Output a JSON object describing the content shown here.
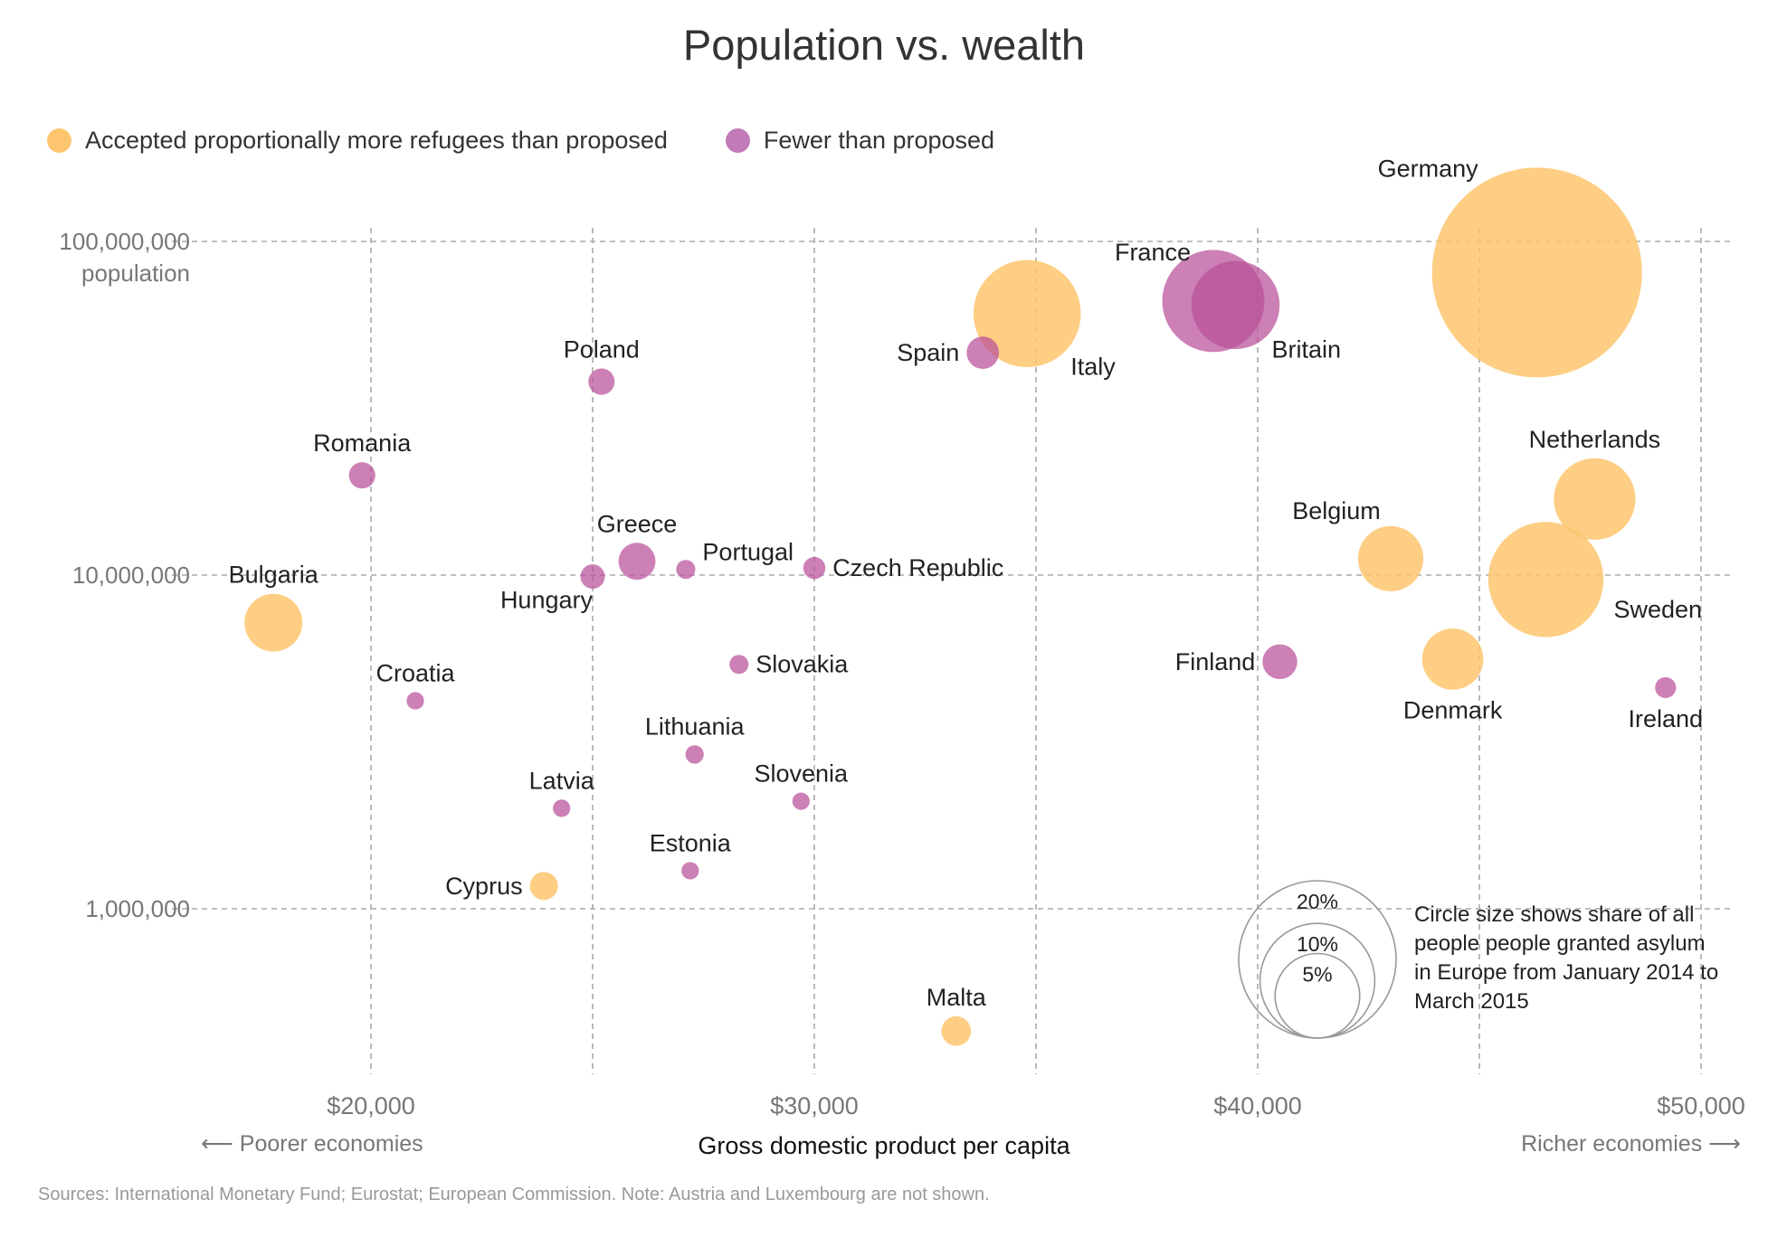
{
  "chart_data": {
    "type": "scatter",
    "title": "Population vs. wealth",
    "xlabel": "Gross domestic product per capita",
    "ylabel": "population",
    "x_scale": "linear",
    "y_scale": "log",
    "xlim": [
      15000,
      51000
    ],
    "ylim": [
      350000,
      170000000
    ],
    "x_ticks": [
      20000,
      30000,
      40000,
      50000
    ],
    "x_tick_labels": [
      "$20,000",
      "$30,000",
      "$40,000",
      "$50,000"
    ],
    "y_ticks": [
      1000000,
      10000000,
      100000000
    ],
    "y_tick_labels": [
      "1,000,000",
      "10,000,000",
      "100,000,000"
    ],
    "grid": true,
    "legend_position": "top-left",
    "series": [
      {
        "name": "Accepted proportionally more refugees than proposed",
        "color": "#fdc66e",
        "key": "more"
      },
      {
        "name": "Fewer than proposed",
        "color": "#b84f99",
        "key": "fewer"
      }
    ],
    "size_legend": {
      "labels": [
        "20%",
        "10%",
        "5%"
      ],
      "values": [
        20,
        10,
        5
      ]
    },
    "points": [
      {
        "country": "Germany",
        "gdp": 46300,
        "population": 80700000,
        "group": "more",
        "share": 37
      },
      {
        "country": "France",
        "gdp": 39000,
        "population": 66300000,
        "group": "fewer",
        "share": 7.7
      },
      {
        "country": "Britain",
        "gdp": 39500,
        "population": 64500000,
        "group": "fewer",
        "share": 5.5
      },
      {
        "country": "Italy",
        "gdp": 34800,
        "population": 60800000,
        "group": "more",
        "share": 8.6
      },
      {
        "country": "Spain",
        "gdp": 33800,
        "population": 46400000,
        "group": "fewer",
        "share": 0.4
      },
      {
        "country": "Poland",
        "gdp": 25200,
        "population": 38000000,
        "group": "fewer",
        "share": 0.2
      },
      {
        "country": "Romania",
        "gdp": 19800,
        "population": 19900000,
        "group": "fewer",
        "share": 0.2
      },
      {
        "country": "Netherlands",
        "gdp": 47600,
        "population": 16900000,
        "group": "more",
        "share": 4.6
      },
      {
        "country": "Belgium",
        "gdp": 43000,
        "population": 11200000,
        "group": "more",
        "share": 2.7
      },
      {
        "country": "Greece",
        "gdp": 26000,
        "population": 11000000,
        "group": "fewer",
        "share": 0.6
      },
      {
        "country": "Portugal",
        "gdp": 27100,
        "population": 10400000,
        "group": "fewer",
        "share": 0.05
      },
      {
        "country": "Czech Republic",
        "gdp": 30000,
        "population": 10500000,
        "group": "fewer",
        "share": 0.1
      },
      {
        "country": "Hungary",
        "gdp": 25000,
        "population": 9900000,
        "group": "fewer",
        "share": 0.15
      },
      {
        "country": "Sweden",
        "gdp": 46500,
        "population": 9700000,
        "group": "more",
        "share": 10.1
      },
      {
        "country": "Bulgaria",
        "gdp": 17800,
        "population": 7200000,
        "group": "more",
        "share": 2.0
      },
      {
        "country": "Denmark",
        "gdp": 44400,
        "population": 5600000,
        "group": "more",
        "share": 2.3
      },
      {
        "country": "Finland",
        "gdp": 40500,
        "population": 5500000,
        "group": "fewer",
        "share": 0.5
      },
      {
        "country": "Slovakia",
        "gdp": 28300,
        "population": 5400000,
        "group": "fewer",
        "share": 0.05
      },
      {
        "country": "Ireland",
        "gdp": 49200,
        "population": 4600000,
        "group": "fewer",
        "share": 0.08
      },
      {
        "country": "Croatia",
        "gdp": 21000,
        "population": 4200000,
        "group": "fewer",
        "share": 0.03
      },
      {
        "country": "Lithuania",
        "gdp": 27300,
        "population": 2900000,
        "group": "fewer",
        "share": 0.04
      },
      {
        "country": "Slovenia",
        "gdp": 29700,
        "population": 2100000,
        "group": "fewer",
        "share": 0.03
      },
      {
        "country": "Latvia",
        "gdp": 24300,
        "population": 2000000,
        "group": "fewer",
        "share": 0.03
      },
      {
        "country": "Estonia",
        "gdp": 27200,
        "population": 1300000,
        "group": "fewer",
        "share": 0.03
      },
      {
        "country": "Cyprus",
        "gdp": 23900,
        "population": 1170000,
        "group": "more",
        "share": 0.25
      },
      {
        "country": "Malta",
        "gdp": 33200,
        "population": 430000,
        "group": "more",
        "share": 0.3
      }
    ]
  },
  "legend": {
    "more_label": "Accepted proportionally more refugees than proposed",
    "fewer_label": "Fewer than proposed"
  },
  "size_note": "Circle size shows share of all people people granted asylum in Europe from January 2014 to March 2015",
  "direction": {
    "left": "Poorer economies",
    "right": "Richer economies"
  },
  "source": "Sources: International Monetary Fund; Eurostat; European Commission. Note: Austria and Luxembourg are not shown."
}
